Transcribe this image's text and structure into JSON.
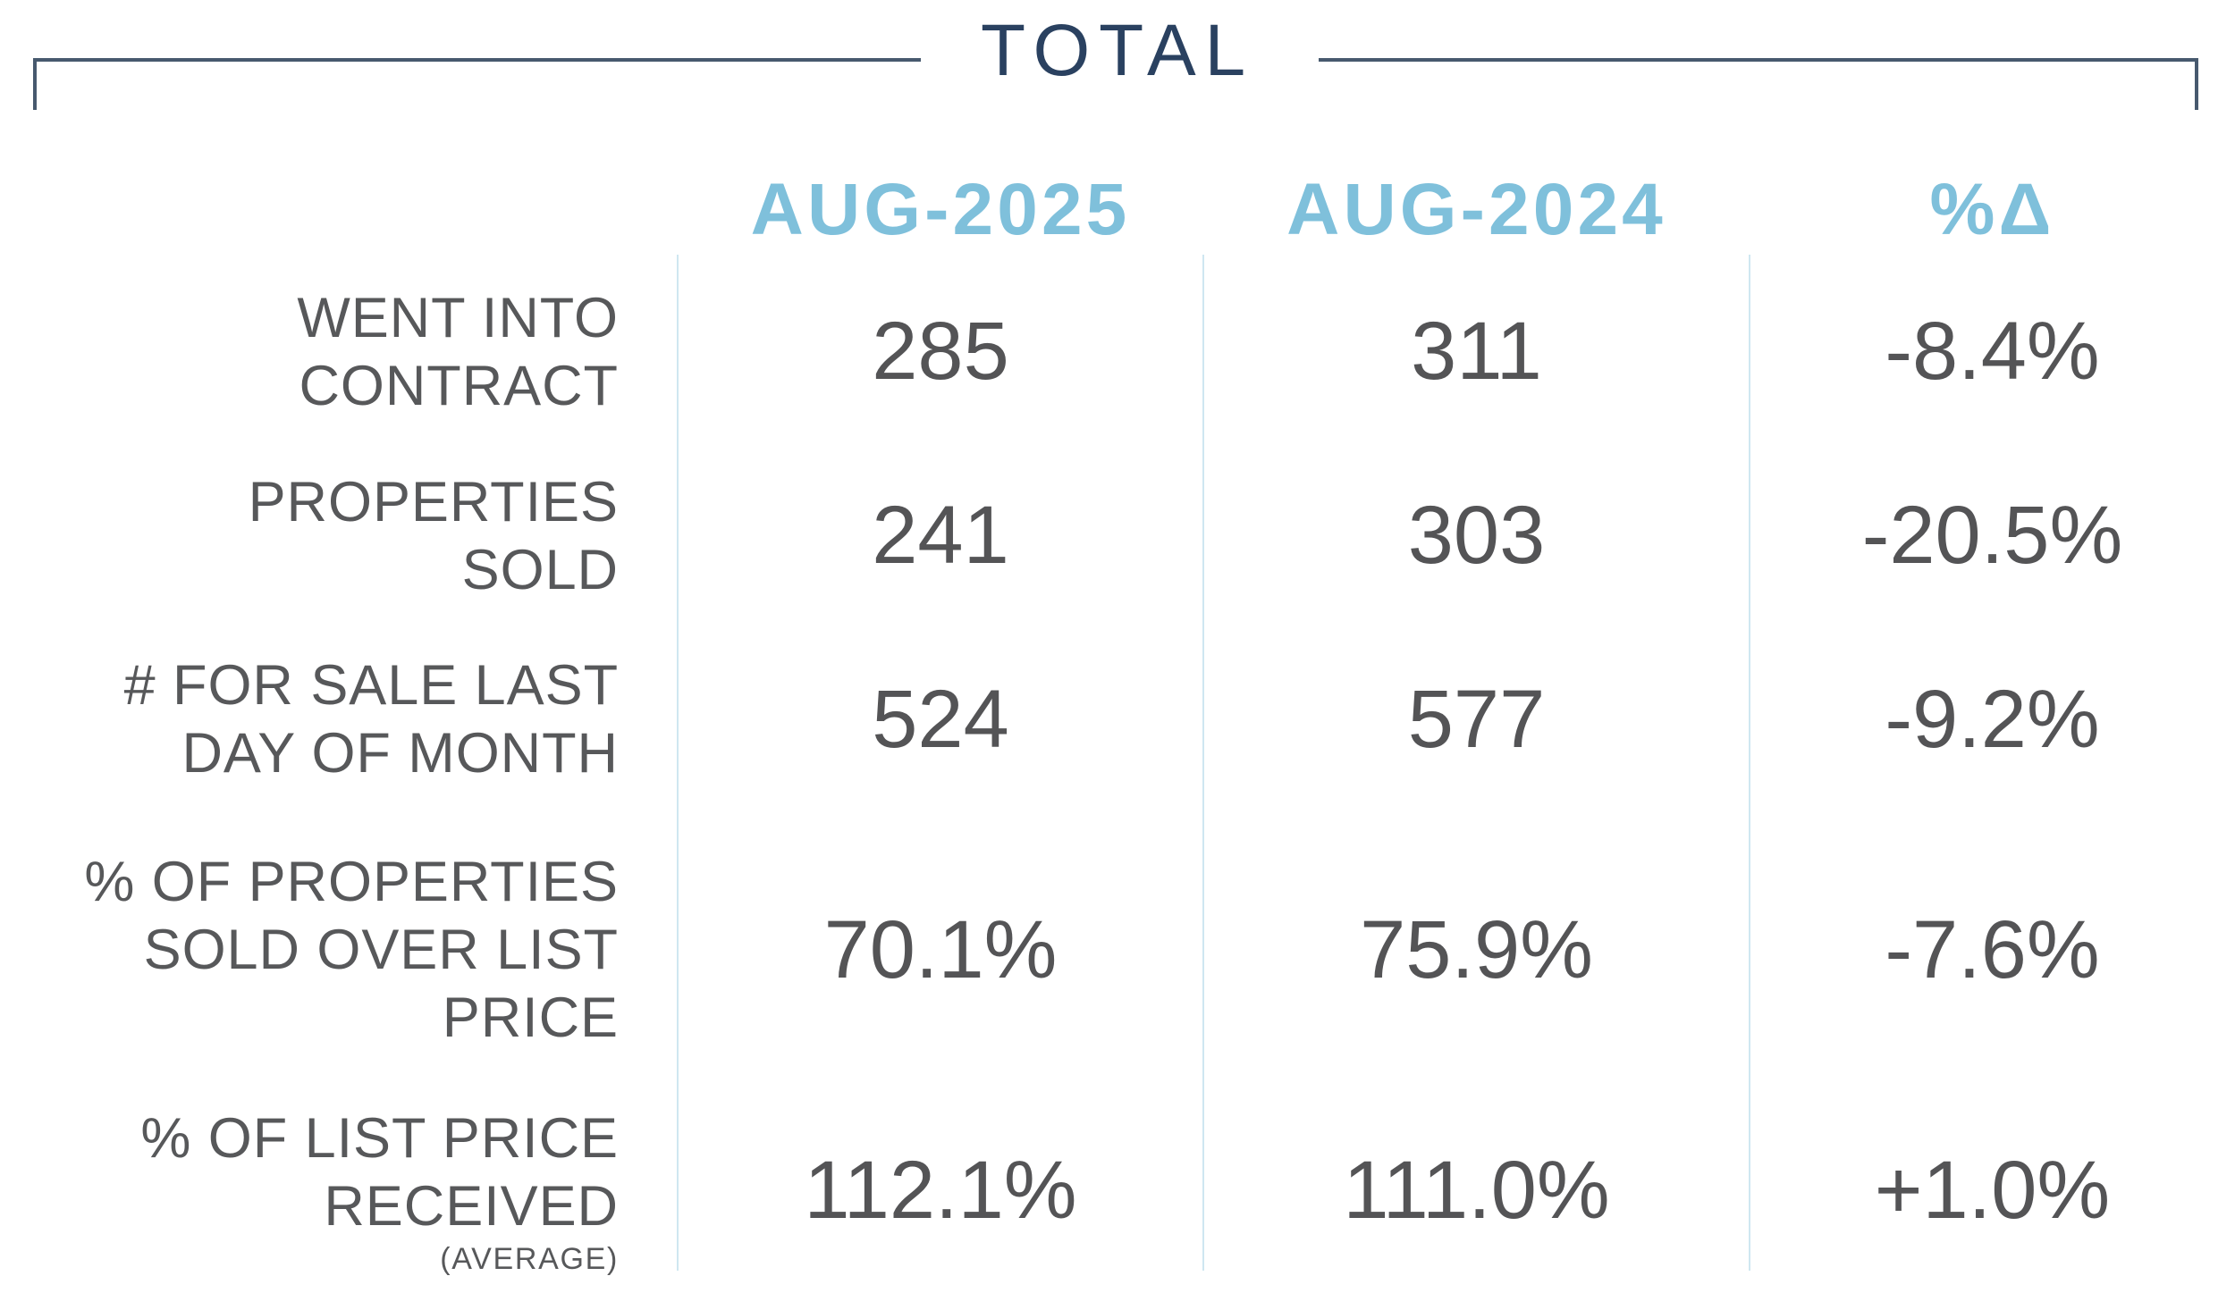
{
  "chart_data": {
    "type": "table",
    "title": "TOTAL",
    "columns": [
      "AUG-2025",
      "AUG-2024",
      "%Δ"
    ],
    "rows": [
      {
        "label": "WENT INTO\nCONTRACT",
        "sublabel": "",
        "values": [
          "285",
          "311",
          "-8.4%"
        ]
      },
      {
        "label": "PROPERTIES\nSOLD",
        "sublabel": "",
        "values": [
          "241",
          "303",
          "-20.5%"
        ]
      },
      {
        "label": "# FOR SALE LAST\nDAY OF MONTH",
        "sublabel": "",
        "values": [
          "524",
          "577",
          "-9.2%"
        ]
      },
      {
        "label": "% OF PROPERTIES\nSOLD OVER LIST\nPRICE",
        "sublabel": "",
        "values": [
          "70.1%",
          "75.9%",
          "-7.6%"
        ]
      },
      {
        "label": "% OF LIST PRICE\nRECEIVED",
        "sublabel": "(AVERAGE)",
        "values": [
          "112.1%",
          "111.0%",
          "+1.0%"
        ]
      }
    ]
  },
  "colors": {
    "title_navy": "#2a4160",
    "bracket_line": "#47596e",
    "header_blue": "#7fc0db",
    "label_gray": "#57585a",
    "value_gray": "#545456",
    "separator_blue": "#cfe7f1",
    "background": "#ffffff"
  }
}
